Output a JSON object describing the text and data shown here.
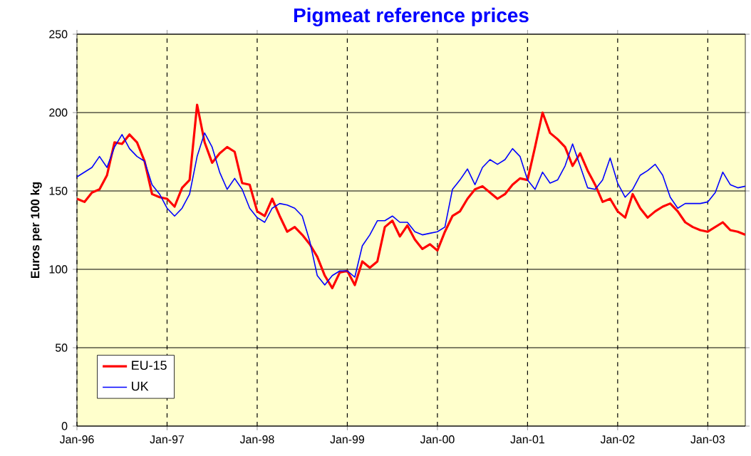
{
  "chart_data": {
    "type": "line",
    "title": "Pigmeat reference prices",
    "ylabel": "Euros per 100 kg",
    "x": [
      "1996-01",
      "1996-02",
      "1996-03",
      "1996-04",
      "1996-05",
      "1996-06",
      "1996-07",
      "1996-08",
      "1996-09",
      "1996-10",
      "1996-11",
      "1996-12",
      "1997-01",
      "1997-02",
      "1997-03",
      "1997-04",
      "1997-05",
      "1997-06",
      "1997-07",
      "1997-08",
      "1997-09",
      "1997-10",
      "1997-11",
      "1997-12",
      "1998-01",
      "1998-02",
      "1998-03",
      "1998-04",
      "1998-05",
      "1998-06",
      "1998-07",
      "1998-08",
      "1998-09",
      "1998-10",
      "1998-11",
      "1998-12",
      "1999-01",
      "1999-02",
      "1999-03",
      "1999-04",
      "1999-05",
      "1999-06",
      "1999-07",
      "1999-08",
      "1999-09",
      "1999-10",
      "1999-11",
      "1999-12",
      "2000-01",
      "2000-02",
      "2000-03",
      "2000-04",
      "2000-05",
      "2000-06",
      "2000-07",
      "2000-08",
      "2000-09",
      "2000-10",
      "2000-11",
      "2000-12",
      "2001-01",
      "2001-02",
      "2001-03",
      "2001-04",
      "2001-05",
      "2001-06",
      "2001-07",
      "2001-08",
      "2001-09",
      "2001-10",
      "2001-11",
      "2001-12",
      "2002-01",
      "2002-02",
      "2002-03",
      "2002-04",
      "2002-05",
      "2002-06",
      "2002-07",
      "2002-08",
      "2002-09",
      "2002-10",
      "2002-11",
      "2002-12",
      "2003-01",
      "2003-02",
      "2003-03",
      "2003-04",
      "2003-05",
      "2003-06"
    ],
    "series": [
      {
        "name": "EU-15",
        "color": "#ff0000",
        "values": [
          145,
          143,
          149,
          151,
          160,
          181,
          180,
          186,
          181,
          169,
          148,
          146,
          145,
          140,
          152,
          157,
          205,
          181,
          168,
          174,
          178,
          175,
          155,
          154,
          137,
          134,
          145,
          134,
          124,
          127,
          122,
          116,
          108,
          96,
          88,
          98,
          99,
          90,
          105,
          101,
          105,
          127,
          131,
          121,
          128,
          119,
          113,
          116,
          112,
          124,
          134,
          137,
          145,
          151,
          153,
          149,
          145,
          148,
          154,
          158,
          157,
          178,
          200,
          187,
          183,
          178,
          166,
          174,
          163,
          154,
          143,
          145,
          137,
          133,
          148,
          139,
          133,
          137,
          140,
          142,
          137,
          130,
          127,
          125,
          124,
          127,
          130,
          125,
          124,
          122
        ]
      },
      {
        "name": "UK",
        "color": "#0000ff",
        "values": [
          159,
          162,
          165,
          172,
          165,
          178,
          186,
          177,
          172,
          169,
          154,
          148,
          139,
          134,
          139,
          148,
          172,
          187,
          178,
          162,
          151,
          158,
          151,
          139,
          133,
          130,
          139,
          142,
          141,
          139,
          134,
          118,
          96,
          90,
          96,
          99,
          99,
          95,
          115,
          122,
          131,
          131,
          134,
          130,
          130,
          124,
          122,
          123,
          124,
          127,
          151,
          157,
          164,
          154,
          165,
          170,
          167,
          170,
          177,
          172,
          157,
          151,
          162,
          155,
          157,
          166,
          180,
          166,
          152,
          151,
          157,
          171,
          155,
          146,
          151,
          160,
          163,
          167,
          160,
          146,
          139,
          142,
          142,
          142,
          143,
          149,
          162,
          154,
          152,
          153
        ]
      }
    ],
    "xlim": [
      "1996-01",
      "2003-06"
    ],
    "xticks": [
      {
        "value": "1996-01",
        "label": "Jan-96"
      },
      {
        "value": "1997-01",
        "label": "Jan-97"
      },
      {
        "value": "1998-01",
        "label": "Jan-98"
      },
      {
        "value": "1999-01",
        "label": "Jan-99"
      },
      {
        "value": "2000-01",
        "label": "Jan-00"
      },
      {
        "value": "2001-01",
        "label": "Jan-01"
      },
      {
        "value": "2002-01",
        "label": "Jan-02"
      },
      {
        "value": "2003-01",
        "label": "Jan-03"
      }
    ],
    "ylim": [
      0,
      250
    ],
    "yticks": [
      0,
      50,
      100,
      150,
      200,
      250
    ],
    "grid": true,
    "legend": "bottom left",
    "line_style": "solid",
    "marker": "none"
  }
}
